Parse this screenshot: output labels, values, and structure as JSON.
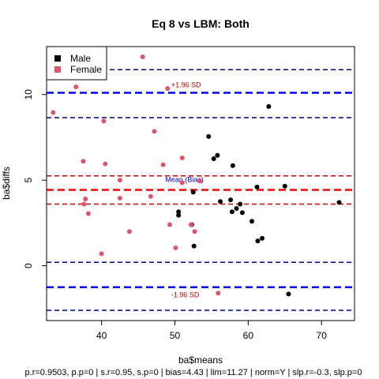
{
  "chart_data": {
    "type": "scatter",
    "title": "Eq 8 vs LBM: Both",
    "xlabel": "ba$means",
    "ylabel": "ba$diffs",
    "subtitle": "p.r=0.9503, p.p=0 | s.r=0.95, s.p=0 | bias=4.43 | lim=11.27 | norm=Y | slp.r=-0.3, slp.p=0",
    "xlim": [
      32.5,
      74.5
    ],
    "ylim": [
      -3.2,
      12.8
    ],
    "x_ticks": [
      40,
      50,
      60,
      70
    ],
    "y_ticks": [
      0,
      5,
      10
    ],
    "grid": false,
    "legend_position": "top-left",
    "series": [
      {
        "name": "Male",
        "color": "#000000",
        "points": [
          [
            54.6,
            7.55
          ],
          [
            55.3,
            6.25
          ],
          [
            55.8,
            6.45
          ],
          [
            57.9,
            5.85
          ],
          [
            62.8,
            9.3
          ],
          [
            52.5,
            4.3
          ],
          [
            50.5,
            3.15
          ],
          [
            50.5,
            2.95
          ],
          [
            52.3,
            2.4
          ],
          [
            52.6,
            1.15
          ],
          [
            56.2,
            3.75
          ],
          [
            57.6,
            3.85
          ],
          [
            57.8,
            3.15
          ],
          [
            58.4,
            3.35
          ],
          [
            58.9,
            3.6
          ],
          [
            59.2,
            3.1
          ],
          [
            60.5,
            2.6
          ],
          [
            61.2,
            4.6
          ],
          [
            61.3,
            1.45
          ],
          [
            61.9,
            1.6
          ],
          [
            65.0,
            4.65
          ],
          [
            65.5,
            -1.65
          ],
          [
            72.4,
            3.7
          ]
        ]
      },
      {
        "name": "Female",
        "color": "#DF536B",
        "points": [
          [
            33.4,
            8.95
          ],
          [
            36.5,
            10.45
          ],
          [
            37.5,
            6.1
          ],
          [
            37.6,
            3.6
          ],
          [
            37.8,
            3.9
          ],
          [
            38.2,
            3.05
          ],
          [
            40.0,
            0.7
          ],
          [
            40.3,
            8.45
          ],
          [
            40.5,
            5.95
          ],
          [
            42.5,
            5.0
          ],
          [
            42.5,
            3.95
          ],
          [
            43.8,
            2.0
          ],
          [
            45.6,
            12.2
          ],
          [
            46.7,
            4.05
          ],
          [
            47.2,
            7.85
          ],
          [
            48.4,
            5.9
          ],
          [
            49.0,
            10.35
          ],
          [
            49.3,
            2.4
          ],
          [
            50.1,
            1.05
          ],
          [
            51.0,
            6.3
          ],
          [
            51.0,
            4.85
          ],
          [
            52.2,
            2.4
          ],
          [
            52.7,
            2.0
          ],
          [
            53.4,
            4.95
          ],
          [
            55.9,
            -1.6
          ]
        ]
      }
    ],
    "reference_lines": {
      "mean_bias": 4.43,
      "mean_bias_ci": [
        3.6,
        5.25
      ],
      "upper_loa": 10.1,
      "upper_loa_ci": [
        8.65,
        11.45
      ],
      "lower_loa": -1.25,
      "lower_loa_ci": [
        -2.6,
        0.2
      ]
    },
    "annotations": {
      "upper": "+1.96 SD",
      "mean": "Mean (Bias)",
      "lower": "-1.96 SD"
    },
    "colors": {
      "loa": "#0000FF",
      "mean": "#FF0000",
      "mean_ci": "#CD0000",
      "loa_ci": "#00008B",
      "upper_label": "#CD0000",
      "lower_label": "#CD0000",
      "mean_label": "#0000CD"
    }
  }
}
